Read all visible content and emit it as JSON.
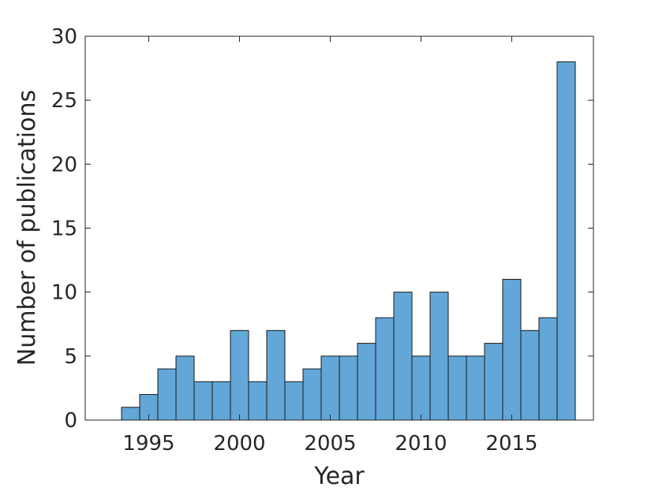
{
  "chart_data": {
    "type": "bar",
    "xlabel": "Year",
    "ylabel": "Number of publications",
    "x": [
      1994,
      1995,
      1996,
      1997,
      1998,
      1999,
      2000,
      2001,
      2002,
      2003,
      2004,
      2005,
      2006,
      2007,
      2008,
      2009,
      2010,
      2011,
      2012,
      2013,
      2014,
      2015,
      2016,
      2017,
      2018
    ],
    "values": [
      1,
      2,
      4,
      5,
      3,
      3,
      7,
      3,
      7,
      3,
      4,
      5,
      5,
      6,
      8,
      10,
      5,
      10,
      5,
      5,
      6,
      11,
      7,
      8,
      28
    ],
    "xlim": [
      1991.5,
      2019.5
    ],
    "ylim": [
      0,
      30
    ],
    "xticks": [
      1995,
      2000,
      2005,
      2010,
      2015
    ],
    "yticks": [
      0,
      5,
      10,
      15,
      20,
      25,
      30
    ],
    "grid": false,
    "legend": "none",
    "colors": {
      "bar_fill": "#62a7d8",
      "bar_edge": "#1a1a1a",
      "axis": "#262626"
    }
  }
}
